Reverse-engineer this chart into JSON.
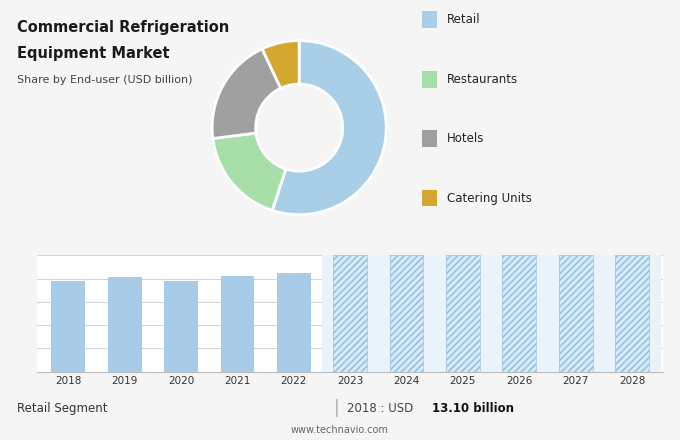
{
  "title_line1": "Commercial Refrigeration",
  "title_line2": "Equipment Market",
  "subtitle": "Share by End-user (USD billion)",
  "pie_labels": [
    "Retail",
    "Restaurants",
    "Hotels",
    "Catering Units"
  ],
  "pie_values": [
    55,
    18,
    20,
    7
  ],
  "pie_colors": [
    "#A8CEE8",
    "#A8DFA8",
    "#A0A0A0",
    "#D4A830"
  ],
  "bar_years": [
    2018,
    2019,
    2020,
    2021,
    2022
  ],
  "bar_values": [
    13.1,
    13.6,
    13.0,
    13.8,
    14.2
  ],
  "forecast_years": [
    2023,
    2024,
    2025,
    2026,
    2027,
    2028
  ],
  "bar_color": "#A8CCE8",
  "forecast_hatch_color": "#A8CCE8",
  "bg_top": "#E0E0E0",
  "bg_bottom": "#F5F5F5",
  "footer_bg": "#EBEBEB",
  "footer_left": "Retail Segment",
  "footer_right_normal": "2018 : USD ",
  "footer_right_bold": "13.10 billion",
  "footer_website": "www.technavio.com",
  "grid_color": "#CCCCCC",
  "bar_chart_bg": "#FFFFFF"
}
